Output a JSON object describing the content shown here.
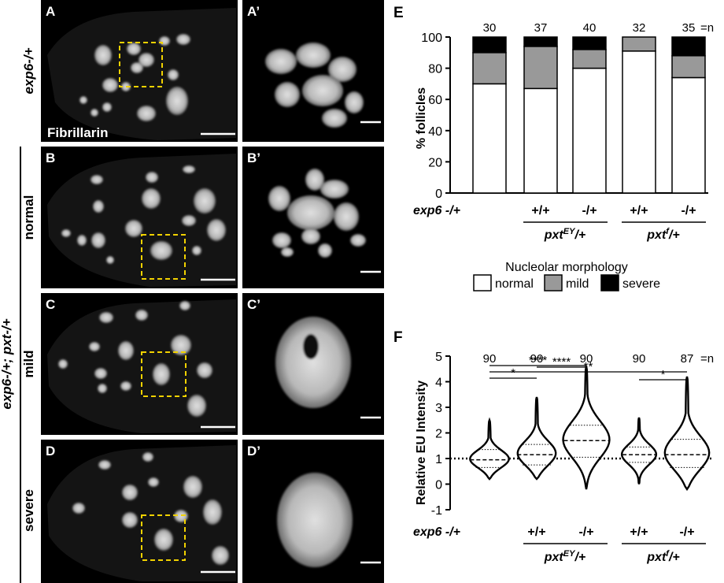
{
  "micrographs": {
    "panel_letters": [
      "A",
      "A’",
      "B",
      "B’",
      "C",
      "C’",
      "D",
      "D’"
    ],
    "stain_label": "Fibrillarin",
    "row_labels": [
      "exp6-/+",
      "normal",
      "mild",
      "severe"
    ],
    "genotype_label": "exp6-/+; pxt-/+"
  },
  "panel_E": {
    "letter": "E",
    "ylabel": "% follicles",
    "yticks": [
      "0",
      "20",
      "40",
      "60",
      "80",
      "100"
    ],
    "n_values": [
      "30",
      "37",
      "40",
      "32",
      "35"
    ],
    "n_suffix": "=n",
    "x_first": "exp6 -/+",
    "x_pairs": [
      "+/+",
      "-/+",
      "+/+",
      "-/+"
    ],
    "group_labels": [
      {
        "base": "pxt",
        "sup": "EY",
        "tail": "/+"
      },
      {
        "base": "pxt",
        "sup": "f",
        "tail": "/+"
      }
    ],
    "legend_title": "Nucleolar morphology",
    "legend_items": [
      {
        "label": "normal",
        "color": "#ffffff"
      },
      {
        "label": "mild",
        "color": "#999999"
      },
      {
        "label": "severe",
        "color": "#000000"
      }
    ]
  },
  "panel_F": {
    "letter": "F",
    "ylabel": "Relative EU Intensity",
    "yticks": [
      "-1",
      "0",
      "1",
      "2",
      "3",
      "4",
      "5"
    ],
    "n_values": [
      "90",
      "90",
      "90",
      "90",
      "87"
    ],
    "n_suffix": "=n",
    "x_first": "exp6 -/+",
    "x_pairs": [
      "+/+",
      "-/+",
      "+/+",
      "-/+"
    ],
    "group_labels": [
      {
        "base": "pxt",
        "sup": "EY",
        "tail": "/+"
      },
      {
        "base": "pxt",
        "sup": "f",
        "tail": "/+"
      }
    ],
    "significance": [
      "*",
      "****",
      "****",
      "**",
      "*"
    ]
  },
  "chart_data": [
    {
      "type": "bar",
      "stacked": true,
      "categories": [
        "exp6 -/+",
        "+/+ pxtEY/+",
        "-/+ pxtEY/+",
        "+/+ pxtf/+",
        "-/+ pxtf/+"
      ],
      "series": [
        {
          "name": "normal",
          "color": "#ffffff",
          "values": [
            70,
            67,
            80,
            91,
            74
          ]
        },
        {
          "name": "mild",
          "color": "#999999",
          "values": [
            20,
            27,
            12,
            9,
            14
          ]
        },
        {
          "name": "severe",
          "color": "#000000",
          "values": [
            10,
            6,
            8,
            0,
            12
          ]
        }
      ],
      "ylabel": "% follicles",
      "ylim": [
        0,
        100
      ]
    },
    {
      "type": "violin",
      "categories": [
        "exp6 -/+",
        "+/+ pxtEY/+",
        "-/+ pxtEY/+",
        "+/+ pxtf/+",
        "-/+ pxtf/+"
      ],
      "median": [
        0.95,
        1.15,
        1.7,
        1.15,
        1.15
      ],
      "q1": [
        0.65,
        0.75,
        1.05,
        0.85,
        0.65
      ],
      "q3": [
        1.35,
        1.55,
        2.3,
        1.45,
        1.75
      ],
      "min": [
        0.2,
        0.2,
        -0.2,
        0.0,
        -0.2
      ],
      "max": [
        2.5,
        3.4,
        4.6,
        2.6,
        4.2
      ],
      "reference_line": 1,
      "ylabel": "Relative EU Intensity",
      "ylim": [
        -1,
        5
      ]
    }
  ]
}
